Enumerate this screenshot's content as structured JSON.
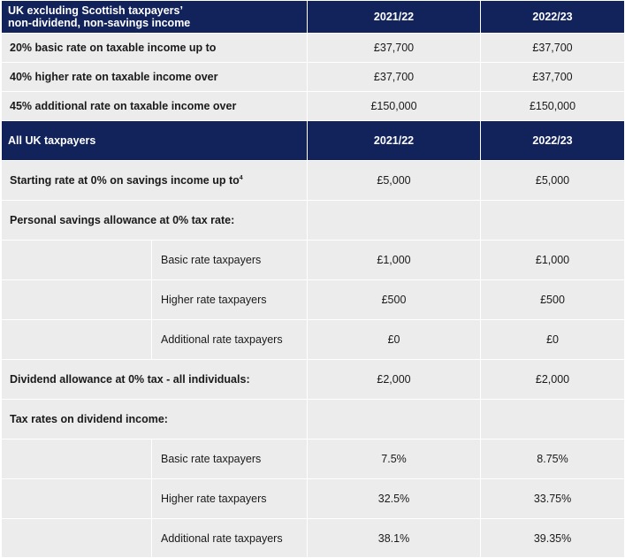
{
  "section1": {
    "header": {
      "label_line1": "UK excluding Scottish taxpayers’",
      "label_line2": "non-dividend, non-savings income",
      "col1": "2021/22",
      "col2": "2022/23"
    },
    "rows": [
      {
        "label": "20%  basic rate on taxable income up to",
        "v1": "£37,700",
        "v2": "£37,700"
      },
      {
        "label": "40%  higher rate on taxable income over",
        "v1": "£37,700",
        "v2": "£37,700"
      },
      {
        "label": "45%  additional rate on taxable income over",
        "v1": "£150,000",
        "v2": "£150,000"
      }
    ]
  },
  "section2": {
    "header": {
      "label": "All UK taxpayers",
      "col1": "2021/22",
      "col2": "2022/23"
    },
    "starting_rate": {
      "label": "Starting rate at 0% on savings income up to",
      "sup": "4",
      "v1": "£5,000",
      "v2": "£5,000"
    },
    "psa": {
      "label": "Personal savings allowance at 0% tax rate:",
      "rows": [
        {
          "label": "Basic rate taxpayers",
          "v1": "£1,000",
          "v2": "£1,000"
        },
        {
          "label": "Higher rate taxpayers",
          "v1": "£500",
          "v2": "£500"
        },
        {
          "label": "Additional rate taxpayers",
          "v1": "£0",
          "v2": "£0"
        }
      ]
    },
    "dividend_allowance": {
      "label": "Dividend allowance at 0% tax - all individuals:",
      "v1": "£2,000",
      "v2": "£2,000"
    },
    "dividend_rates": {
      "label": "Tax rates on dividend income:",
      "rows": [
        {
          "label": "Basic rate taxpayers",
          "v1": "7.5%",
          "v2": "8.75%"
        },
        {
          "label": "Higher rate taxpayers",
          "v1": "32.5%",
          "v2": "33.75%"
        },
        {
          "label": "Additional rate taxpayers",
          "v1": "38.1%",
          "v2": "39.35%"
        }
      ]
    }
  }
}
